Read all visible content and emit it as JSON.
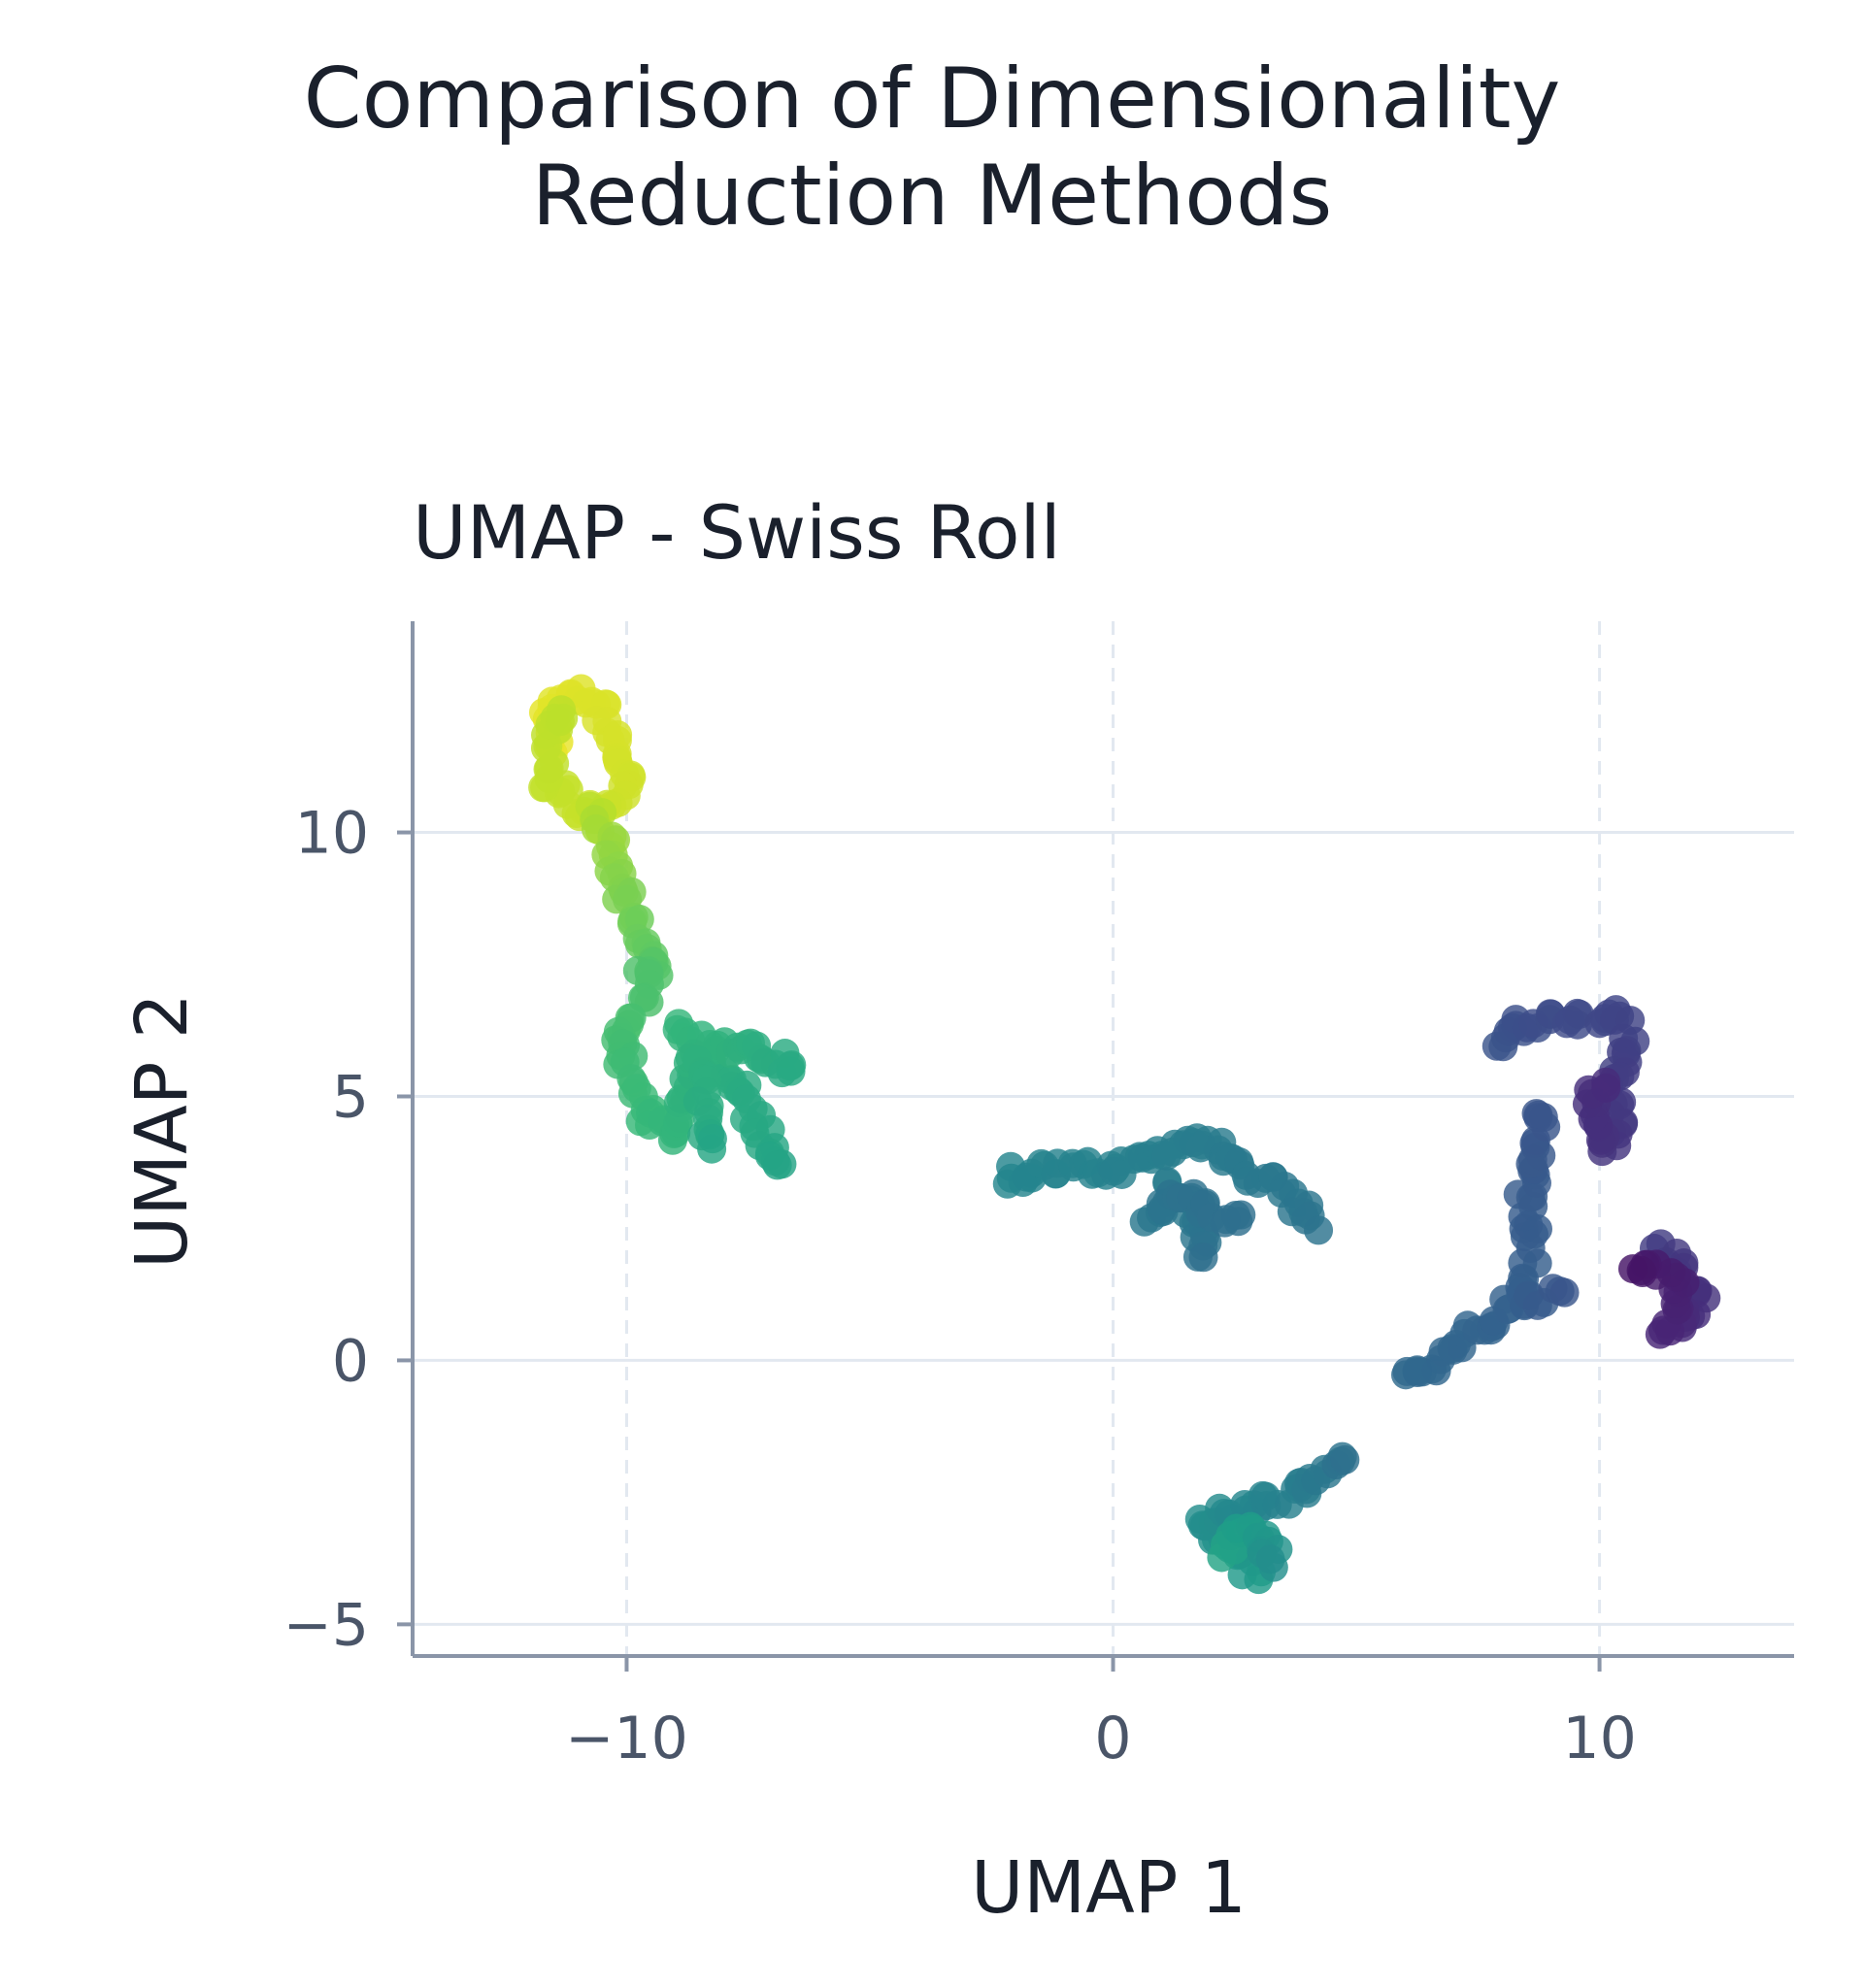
{
  "figure": {
    "title_line1": "Comparison of Dimensionality",
    "title_line2": "Reduction Methods"
  },
  "chart_data": {
    "type": "scatter",
    "title": "UMAP - Swiss Roll",
    "xlabel": "UMAP 1",
    "ylabel": "UMAP 2",
    "xlim": [
      -14.4,
      14
    ],
    "ylim": [
      -5.6,
      14
    ],
    "xticks": [
      -10,
      0,
      10
    ],
    "xtick_labels": [
      "−10",
      "0",
      "10"
    ],
    "yticks": [
      -5,
      0,
      5,
      10
    ],
    "ytick_labels": [
      "−5",
      "0",
      "5",
      "10"
    ],
    "grid": {
      "x": "dashed",
      "y": "solid"
    },
    "colormap": "viridis",
    "colors": {
      "axis": "#8a95a8",
      "grid": "#e2e8f0",
      "tick_text": "#4a5568"
    },
    "clusters": [
      {
        "color_range": [
          0.97,
          0.9
        ],
        "path": [
          [
            -11.4,
            11.5
          ],
          [
            -11.7,
            12.3
          ],
          [
            -11.2,
            12.6
          ],
          [
            -10.6,
            12.5
          ],
          [
            -10.2,
            11.6
          ],
          [
            -10.0,
            10.9
          ],
          [
            -10.5,
            10.4
          ],
          [
            -11.2,
            10.5
          ],
          [
            -11.7,
            11.2
          ],
          [
            -11.2,
            12.4
          ]
        ]
      },
      {
        "color_range": [
          0.9,
          0.72
        ],
        "path": [
          [
            -10.6,
            10.4
          ],
          [
            -10.5,
            10.0
          ],
          [
            -10.3,
            9.4
          ],
          [
            -10.0,
            8.5
          ],
          [
            -9.6,
            7.8
          ],
          [
            -9.2,
            7.3
          ]
        ]
      },
      {
        "color_range": [
          0.72,
          0.58
        ],
        "path": [
          [
            -9.6,
            7.4
          ],
          [
            -9.8,
            6.5
          ],
          [
            -10.2,
            6.0
          ],
          [
            -9.8,
            5.3
          ],
          [
            -9.5,
            4.6
          ],
          [
            -9.0,
            4.2
          ],
          [
            -8.9,
            5.0
          ],
          [
            -8.5,
            5.6
          ],
          [
            -7.8,
            5.3
          ],
          [
            -7.4,
            4.7
          ],
          [
            -7.1,
            4.1
          ],
          [
            -6.9,
            3.5
          ]
        ]
      },
      {
        "color_range": [
          0.66,
          0.6
        ],
        "path": [
          [
            -9.0,
            6.3
          ],
          [
            -8.2,
            6.0
          ],
          [
            -7.2,
            5.8
          ],
          [
            -6.4,
            5.5
          ]
        ]
      },
      {
        "color_range": [
          0.64,
          0.58
        ],
        "path": [
          [
            -8.6,
            5.9
          ],
          [
            -8.3,
            4.4
          ],
          [
            -8.0,
            4.0
          ]
        ]
      },
      {
        "color_range": [
          0.46,
          0.38
        ],
        "path": [
          [
            -2.3,
            3.5
          ],
          [
            -1.5,
            3.6
          ],
          [
            -0.5,
            3.6
          ],
          [
            0.4,
            3.7
          ],
          [
            1.2,
            4.0
          ],
          [
            1.8,
            4.2
          ],
          [
            2.3,
            4.0
          ],
          [
            2.9,
            3.5
          ],
          [
            3.4,
            3.3
          ],
          [
            3.9,
            2.8
          ],
          [
            4.2,
            2.5
          ]
        ]
      },
      {
        "color_range": [
          0.42,
          0.36
        ],
        "path": [
          [
            1.0,
            3.3
          ],
          [
            1.6,
            2.8
          ],
          [
            1.8,
            2.2
          ],
          [
            1.9,
            1.9
          ]
        ]
      },
      {
        "color_range": [
          0.4,
          0.36
        ],
        "path": [
          [
            0.8,
            2.6
          ],
          [
            1.2,
            3.1
          ],
          [
            2.8,
            2.6
          ]
        ]
      },
      {
        "color_range": [
          0.55,
          0.36
        ],
        "path": [
          [
            2.9,
            -4.1
          ],
          [
            2.5,
            -3.5
          ],
          [
            1.8,
            -3.2
          ],
          [
            2.5,
            -2.8
          ],
          [
            3.4,
            -2.6
          ],
          [
            4.1,
            -2.3
          ],
          [
            4.6,
            -2.0
          ],
          [
            4.8,
            -1.8
          ]
        ]
      },
      {
        "color_range": [
          0.58,
          0.48
        ],
        "path": [
          [
            2.2,
            -3.7
          ],
          [
            2.8,
            -3.2
          ],
          [
            3.3,
            -3.6
          ],
          [
            3.0,
            -3.9
          ]
        ]
      },
      {
        "color_range": [
          0.34,
          0.26
        ],
        "path": [
          [
            6.0,
            -0.4
          ],
          [
            6.6,
            -0.1
          ],
          [
            7.2,
            0.4
          ],
          [
            7.8,
            0.7
          ],
          [
            8.2,
            1.0
          ],
          [
            8.5,
            1.6
          ],
          [
            8.6,
            2.2
          ],
          [
            8.5,
            3.2
          ],
          [
            8.8,
            3.8
          ],
          [
            8.8,
            4.4
          ],
          [
            8.5,
            4.8
          ]
        ]
      },
      {
        "color_range": [
          0.3,
          0.26
        ],
        "path": [
          [
            8.5,
            1.2
          ],
          [
            8.9,
            1.2
          ],
          [
            9.2,
            1.2
          ]
        ]
      },
      {
        "color_range": [
          0.26,
          0.12
        ],
        "path": [
          [
            8.0,
            5.9
          ],
          [
            8.2,
            6.4
          ],
          [
            8.8,
            6.4
          ],
          [
            9.5,
            6.5
          ],
          [
            10.2,
            6.6
          ],
          [
            10.6,
            6.2
          ],
          [
            10.4,
            5.5
          ],
          [
            10.3,
            4.9
          ],
          [
            10.4,
            4.2
          ],
          [
            10.0,
            4.0
          ],
          [
            9.8,
            4.8
          ],
          [
            10.1,
            5.4
          ]
        ]
      },
      {
        "color_range": [
          0.18,
          0.05
        ],
        "path": [
          [
            11.2,
            2.1
          ],
          [
            11.7,
            1.8
          ],
          [
            12.1,
            1.2
          ],
          [
            11.8,
            0.8
          ],
          [
            11.4,
            0.5
          ],
          [
            11.6,
            1.4
          ],
          [
            11.0,
            1.8
          ],
          [
            10.6,
            1.9
          ]
        ]
      }
    ]
  }
}
